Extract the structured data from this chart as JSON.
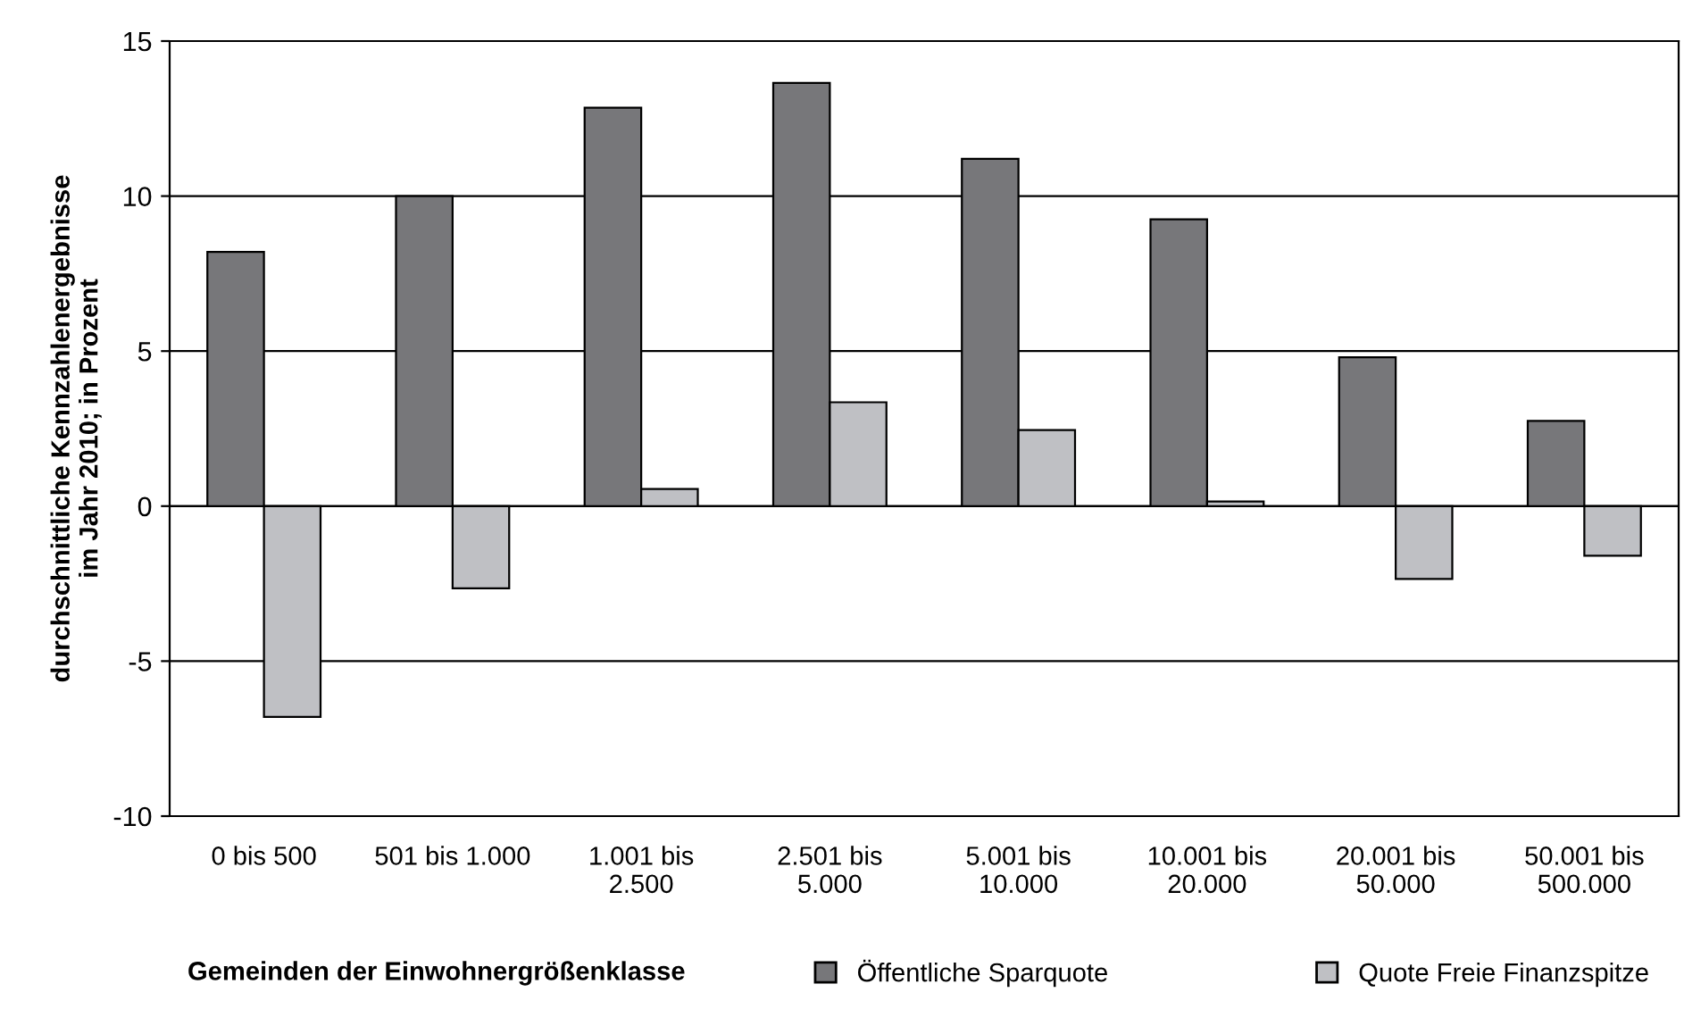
{
  "chart_data": {
    "type": "bar",
    "ylabel": "durchschnittliche Kennzahlenergebnisse\nim Jahr 2010; in Prozent",
    "xlabel": "Gemeinden der Einwohnergrößenklasse",
    "categories": [
      "0 bis 500",
      "501 bis 1.000",
      "1.001 bis\n2.500",
      "2.501 bis\n5.000",
      "5.001 bis\n10.000",
      "10.001 bis\n20.000",
      "20.001 bis\n50.000",
      "50.001 bis\n500.000"
    ],
    "series": [
      {
        "name": "Öffentliche Sparquote",
        "color": "#77777a",
        "values": [
          8.2,
          10.0,
          12.85,
          13.65,
          11.2,
          9.25,
          4.8,
          2.75
        ]
      },
      {
        "name": "Quote Freie Finanzspitze",
        "color": "#bfc0c4",
        "values": [
          -6.8,
          -2.65,
          0.55,
          3.35,
          2.45,
          0.15,
          -2.35,
          -1.6
        ]
      }
    ],
    "ylim": [
      -10,
      15
    ],
    "yticks": [
      -10,
      -5,
      0,
      5,
      10,
      15
    ],
    "grid": "y",
    "legend": "bottom"
  }
}
